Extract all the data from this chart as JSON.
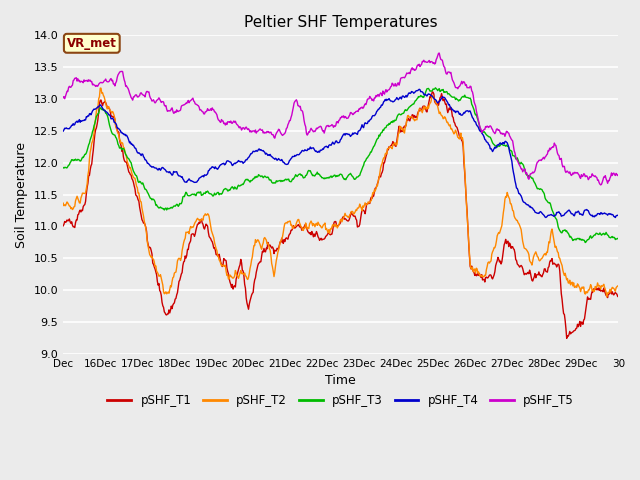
{
  "title": "Peltier SHF Temperatures",
  "xlabel": "Time",
  "ylabel": "Soil Temperature",
  "ylim": [
    9.0,
    14.0
  ],
  "yticks": [
    9.0,
    9.5,
    10.0,
    10.5,
    11.0,
    11.5,
    12.0,
    12.5,
    13.0,
    13.5,
    14.0
  ],
  "bg_color": "#ebebeb",
  "annotation_text": "VR_met",
  "annotation_bg": "#ffffcc",
  "annotation_border": "#8b4513",
  "series_colors": {
    "pSHF_T1": "#cc0000",
    "pSHF_T2": "#ff8800",
    "pSHF_T3": "#00bb00",
    "pSHF_T4": "#0000cc",
    "pSHF_T5": "#cc00cc"
  },
  "x_start": 15,
  "x_end": 30,
  "xtick_positions": [
    15,
    16,
    17,
    18,
    19,
    20,
    21,
    22,
    23,
    24,
    25,
    26,
    27,
    28,
    29,
    30
  ],
  "xtick_labels": [
    "Dec",
    "16Dec",
    "17Dec",
    "18Dec",
    "19Dec",
    "20Dec",
    "21Dec",
    "22Dec",
    "23Dec",
    "24Dec",
    "25Dec",
    "26Dec",
    "27Dec",
    "28Dec",
    "29Dec",
    "30"
  ],
  "t1_xp": [
    15,
    15.3,
    15.6,
    16.0,
    16.3,
    16.7,
    17.0,
    17.2,
    17.4,
    17.6,
    17.8,
    18.0,
    18.3,
    18.6,
    18.9,
    19.0,
    19.2,
    19.4,
    19.6,
    19.8,
    20.0,
    20.2,
    20.5,
    20.7,
    21.0,
    21.3,
    21.6,
    22.0,
    22.3,
    22.6,
    23.0,
    23.3,
    23.7,
    24.0,
    24.3,
    24.6,
    25.0,
    25.2,
    25.5,
    25.8,
    26.0,
    26.3,
    26.6,
    27.0,
    27.3,
    27.6,
    28.0,
    28.2,
    28.4,
    28.6,
    28.8,
    29.0,
    29.3,
    29.6,
    30.0
  ],
  "t1_yp": [
    11.0,
    11.1,
    11.4,
    13.0,
    12.8,
    12.0,
    11.5,
    11.0,
    10.5,
    10.0,
    9.6,
    9.8,
    10.5,
    11.0,
    11.0,
    10.8,
    10.5,
    10.3,
    10.0,
    10.5,
    9.7,
    10.2,
    10.8,
    10.6,
    10.8,
    11.0,
    10.9,
    10.8,
    11.0,
    11.1,
    11.1,
    11.4,
    12.0,
    12.4,
    12.7,
    12.8,
    13.0,
    13.0,
    12.8,
    12.3,
    10.4,
    10.2,
    10.2,
    10.8,
    10.4,
    10.2,
    10.2,
    10.5,
    10.4,
    9.2,
    9.4,
    9.5,
    10.0,
    10.0,
    9.9
  ],
  "t2_xp": [
    15,
    15.3,
    15.6,
    16.0,
    16.3,
    16.7,
    17.0,
    17.2,
    17.4,
    17.6,
    17.8,
    18.0,
    18.3,
    18.6,
    18.9,
    19.0,
    19.2,
    19.4,
    19.6,
    19.8,
    20.0,
    20.2,
    20.5,
    20.7,
    21.0,
    21.3,
    21.6,
    22.0,
    22.3,
    22.6,
    23.0,
    23.3,
    23.7,
    24.0,
    24.3,
    24.6,
    25.0,
    25.2,
    25.5,
    25.8,
    26.0,
    26.3,
    26.6,
    27.0,
    27.3,
    27.6,
    28.0,
    28.2,
    28.4,
    28.6,
    28.8,
    29.0,
    29.3,
    29.6,
    30.0
  ],
  "t2_yp": [
    11.4,
    11.3,
    11.6,
    13.1,
    12.8,
    12.1,
    11.6,
    11.0,
    10.5,
    10.2,
    9.9,
    10.2,
    10.8,
    11.0,
    11.2,
    10.9,
    10.5,
    10.3,
    10.2,
    10.3,
    10.1,
    10.8,
    10.8,
    10.3,
    11.0,
    11.0,
    11.0,
    11.0,
    11.0,
    11.1,
    11.3,
    11.3,
    12.1,
    12.4,
    12.6,
    12.8,
    13.0,
    12.8,
    12.5,
    12.3,
    10.4,
    10.2,
    10.5,
    11.5,
    11.0,
    10.5,
    10.5,
    11.0,
    10.5,
    10.2,
    10.0,
    10.0,
    10.0,
    10.0,
    10.0
  ],
  "t3_xp": [
    15,
    15.3,
    15.6,
    16.0,
    16.3,
    16.7,
    17.0,
    17.3,
    17.6,
    18.0,
    18.3,
    18.6,
    19.0,
    19.3,
    19.6,
    20.0,
    20.3,
    20.6,
    21.0,
    21.4,
    21.8,
    22.2,
    22.6,
    23.0,
    23.4,
    23.8,
    24.2,
    24.6,
    25.0,
    25.3,
    25.6,
    26.0,
    26.3,
    26.6,
    27.0,
    27.3,
    27.6,
    28.0,
    28.4,
    28.8,
    29.2,
    29.6,
    30.0
  ],
  "t3_yp": [
    11.9,
    12.0,
    12.1,
    12.9,
    12.5,
    12.1,
    11.8,
    11.5,
    11.3,
    11.3,
    11.5,
    11.5,
    11.5,
    11.5,
    11.6,
    11.7,
    11.8,
    11.7,
    11.7,
    11.8,
    11.8,
    11.8,
    11.8,
    11.8,
    12.3,
    12.6,
    12.8,
    13.0,
    13.2,
    13.1,
    13.0,
    13.0,
    12.5,
    12.3,
    12.3,
    12.0,
    11.8,
    11.5,
    11.0,
    10.8,
    10.8,
    10.9,
    10.8
  ],
  "t4_xp": [
    15,
    15.3,
    15.6,
    16.0,
    16.3,
    16.7,
    17.0,
    17.3,
    17.6,
    18.0,
    18.3,
    18.6,
    19.0,
    19.3,
    19.6,
    20.0,
    20.3,
    20.6,
    21.0,
    21.3,
    21.6,
    22.0,
    22.3,
    22.6,
    23.0,
    23.3,
    23.6,
    24.0,
    24.3,
    24.6,
    25.0,
    25.3,
    25.6,
    26.0,
    26.3,
    26.6,
    27.0,
    27.3,
    27.6,
    28.0,
    28.4,
    28.8,
    29.2,
    29.6,
    30.0
  ],
  "t4_yp": [
    12.5,
    12.6,
    12.7,
    12.9,
    12.7,
    12.4,
    12.2,
    12.0,
    11.9,
    11.8,
    11.7,
    11.7,
    11.9,
    12.0,
    12.0,
    12.1,
    12.2,
    12.1,
    12.0,
    12.1,
    12.2,
    12.2,
    12.3,
    12.4,
    12.5,
    12.7,
    12.9,
    13.0,
    13.1,
    13.1,
    13.0,
    13.0,
    12.8,
    12.8,
    12.4,
    12.2,
    12.3,
    11.5,
    11.3,
    11.2,
    11.2,
    11.2,
    11.2,
    11.2,
    11.2
  ],
  "t5_xp": [
    15,
    15.2,
    15.4,
    15.6,
    15.8,
    16.0,
    16.2,
    16.4,
    16.6,
    16.8,
    17.0,
    17.2,
    17.4,
    17.6,
    17.8,
    18.0,
    18.2,
    18.5,
    18.8,
    19.0,
    19.2,
    19.5,
    19.8,
    20.0,
    20.3,
    20.6,
    21.0,
    21.3,
    21.6,
    22.0,
    22.3,
    22.6,
    23.0,
    23.3,
    23.6,
    24.0,
    24.3,
    24.6,
    25.0,
    25.15,
    25.3,
    25.6,
    26.0,
    26.3,
    26.6,
    27.0,
    27.3,
    27.6,
    28.0,
    28.3,
    28.6,
    28.9,
    29.2,
    29.5,
    30.0
  ],
  "t5_yp": [
    13.1,
    13.2,
    13.3,
    13.3,
    13.2,
    13.2,
    13.3,
    13.3,
    13.4,
    13.1,
    13.0,
    13.1,
    13.0,
    13.0,
    12.9,
    12.8,
    12.9,
    13.0,
    12.8,
    12.8,
    12.7,
    12.6,
    12.6,
    12.5,
    12.5,
    12.5,
    12.5,
    13.0,
    12.5,
    12.5,
    12.6,
    12.7,
    12.8,
    13.0,
    13.1,
    13.2,
    13.4,
    13.5,
    13.65,
    13.7,
    13.5,
    13.2,
    13.2,
    12.5,
    12.5,
    12.5,
    12.0,
    11.8,
    12.1,
    12.3,
    11.8,
    11.8,
    11.8,
    11.7,
    11.8
  ]
}
